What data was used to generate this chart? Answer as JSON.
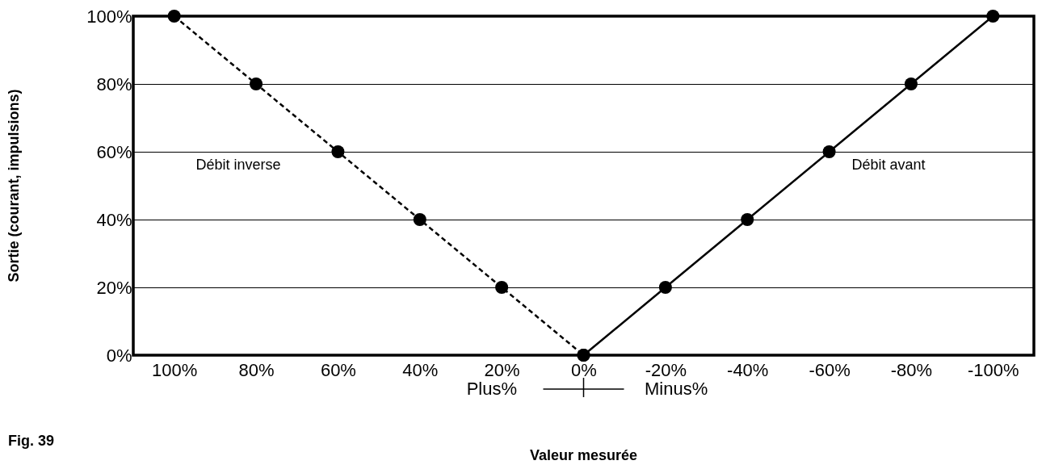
{
  "chart_data": {
    "type": "line",
    "xlabel": "Valeur mesurée",
    "ylabel": "Sortie (courant, impulsions)",
    "xlim": [
      110,
      -110
    ],
    "ylim": [
      0,
      100
    ],
    "xticks": [
      {
        "value": 100,
        "label": "100%"
      },
      {
        "value": 80,
        "label": "80%"
      },
      {
        "value": 60,
        "label": "60%"
      },
      {
        "value": 40,
        "label": "40%"
      },
      {
        "value": 20,
        "label": "20%"
      },
      {
        "value": 0,
        "label": "0%"
      },
      {
        "value": -20,
        "label": "-20%"
      },
      {
        "value": -40,
        "label": "-40%"
      },
      {
        "value": -60,
        "label": "-60%"
      },
      {
        "value": -80,
        "label": "-80%"
      },
      {
        "value": -100,
        "label": "-100%"
      }
    ],
    "yticks": [
      {
        "value": 0,
        "label": "0%"
      },
      {
        "value": 20,
        "label": "20%"
      },
      {
        "value": 40,
        "label": "40%"
      },
      {
        "value": 60,
        "label": "60%"
      },
      {
        "value": 80,
        "label": "80%"
      },
      {
        "value": 100,
        "label": "100%"
      }
    ],
    "grid": "y",
    "marker": "circle",
    "series": [
      {
        "color": "#000000",
        "line_style": "dashed",
        "x": [
          100,
          80,
          60,
          40,
          20,
          0
        ],
        "values": [
          100,
          80,
          60,
          40,
          20,
          0
        ]
      },
      {
        "color": "#000000",
        "line_style": "solid",
        "x": [
          0,
          -20,
          -40,
          -60,
          -80,
          -100
        ],
        "values": [
          0,
          20,
          40,
          60,
          80,
          100
        ]
      }
    ],
    "annotations": [
      "Débit inverse",
      "Débit avant",
      "Plus%",
      "Minus%",
      "Fig. 39"
    ]
  }
}
